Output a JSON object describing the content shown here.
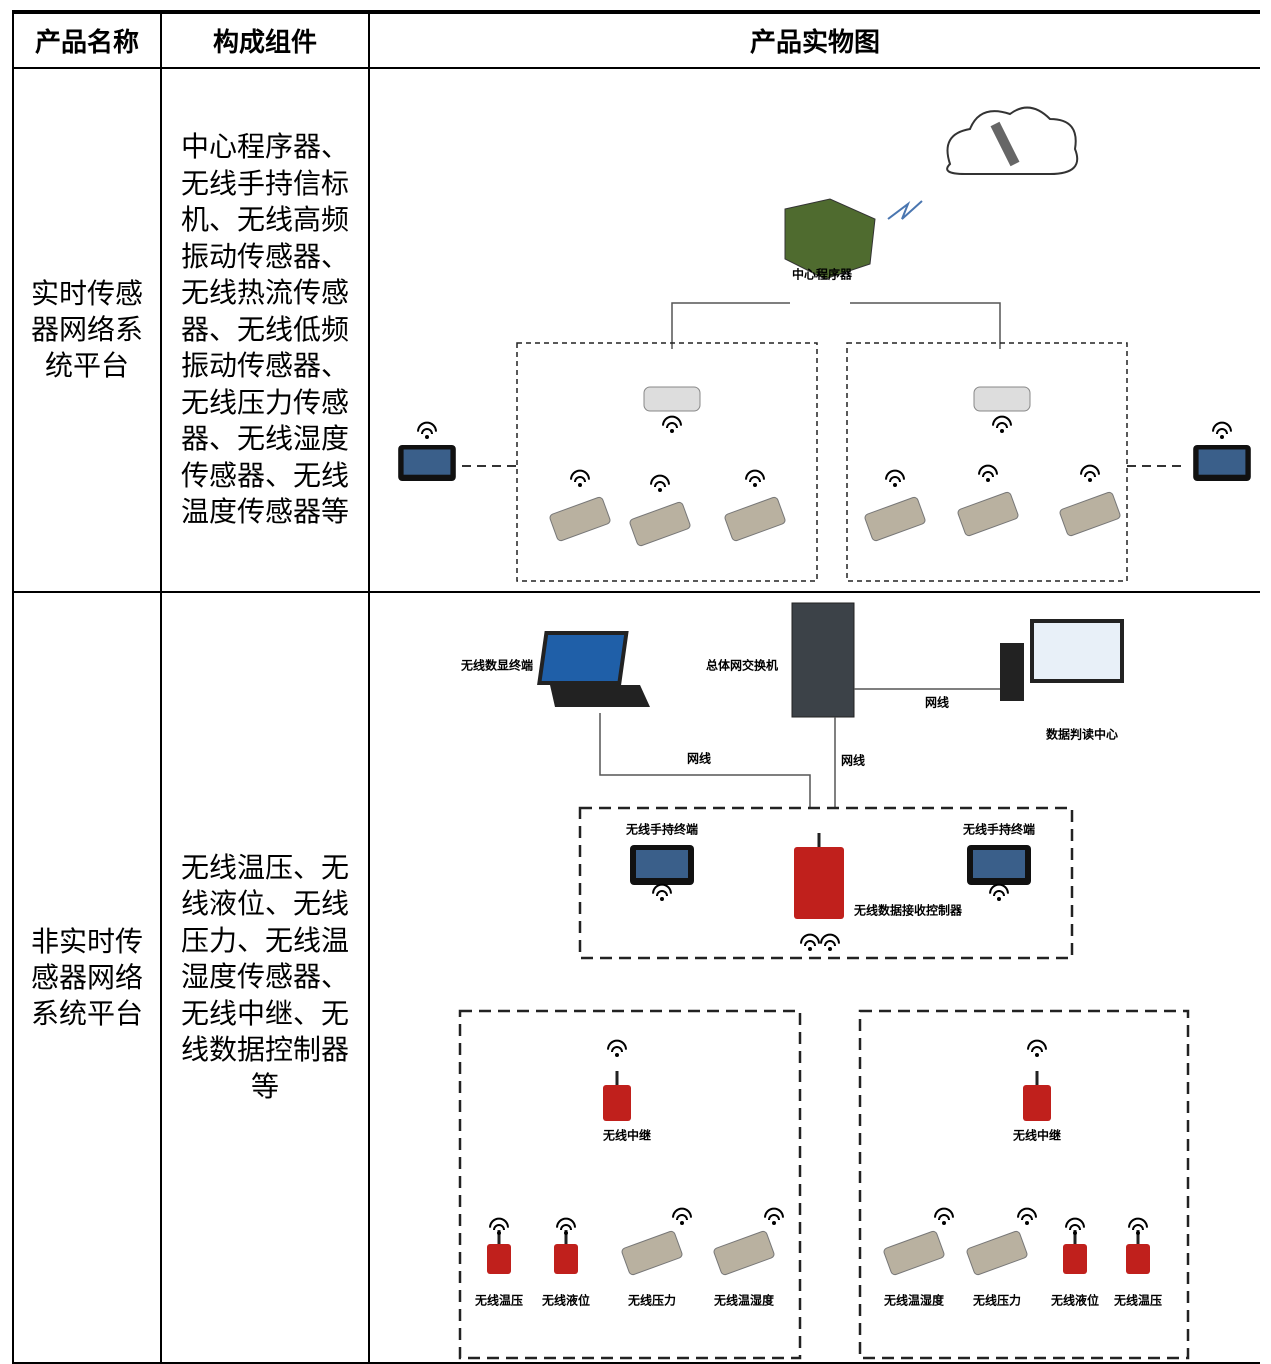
{
  "table": {
    "header": [
      "产品名称",
      "构成组件",
      "产品实物图"
    ],
    "rows": [
      {
        "name": "实时传感器网络系统平台",
        "components": "中心程序器、无线手持信标机、无线高频振动传感器、无线热流传感器、无线低频振动传感器、无线压力传感器、无线湿度传感器、无线温度传感器等",
        "labels": [
          "中心程序器"
        ]
      },
      {
        "name": "非实时传感器网络系统平台",
        "components": "无线温压、无线液位、无线压力、无线温湿度传感器、无线中继、无线数据控制器等",
        "labels": [
          "无线数显终端",
          "总体网交换机",
          "网线",
          "数据判读中心",
          "网线",
          "网线",
          "无线手持终端",
          "无线手持终端",
          "无线数据接收控制器",
          "无线中继",
          "无线中继",
          "无线温压",
          "无线液位",
          "无线压力",
          "无线温湿度",
          "无线温湿度",
          "无线压力",
          "无线液位",
          "无线温压"
        ]
      }
    ]
  }
}
